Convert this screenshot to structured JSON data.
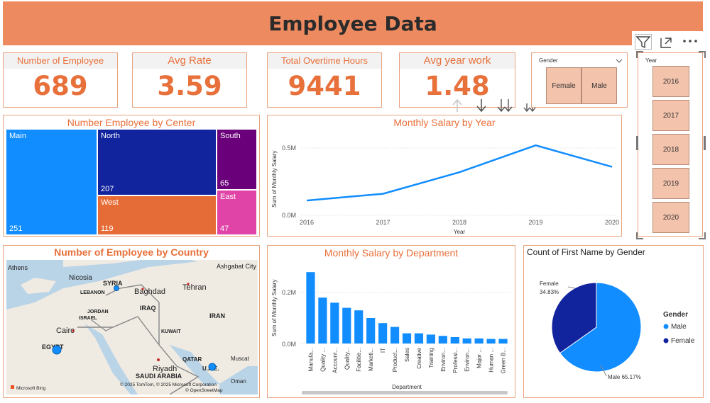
{
  "header": {
    "title": "Employee Data"
  },
  "kpis": {
    "employees": {
      "label": "Number of Employee",
      "value": "689"
    },
    "avg_rate": {
      "label": "Avg Rate",
      "value": "3.59"
    },
    "overtime": {
      "label": "Total Overtime Hours",
      "value": "9441"
    },
    "avg_year": {
      "label": "Avg year work",
      "value": "1.48"
    }
  },
  "gender_slicer": {
    "title": "Gender",
    "options": [
      "Female",
      "Male"
    ]
  },
  "year_slicer": {
    "title": "Year",
    "options": [
      "2016",
      "2017",
      "2018",
      "2019",
      "2020"
    ]
  },
  "treemap": {
    "title": "Number Employee by Center",
    "cells": [
      {
        "label": "Main",
        "value": "251",
        "color": "#118dff"
      },
      {
        "label": "North",
        "value": "207",
        "color": "#12239e"
      },
      {
        "label": "West",
        "value": "119",
        "color": "#e66c37"
      },
      {
        "label": "South",
        "value": "65",
        "color": "#6b007b"
      },
      {
        "label": "East",
        "value": "47",
        "color": "#e044a7"
      }
    ]
  },
  "map": {
    "title": "Number of Employee by Country",
    "labels": [
      "Athens",
      "Ashgabat City",
      "Nicosia",
      "SYRIA",
      "LEBANON",
      "Baghdad",
      "Tehran",
      "JORDAN",
      "IRAQ",
      "ISRAEL",
      "IRAN",
      "Cairo",
      "KUWAIT",
      "EGYPT",
      "QATAR",
      "Muscat",
      "Oman",
      "Riyadh",
      "U.A.E.",
      "SAUDI ARABIA"
    ],
    "attribution": "© 2025 TomTom, © 2025 Microsoft Corporation",
    "osm": "© OpenStreetMap",
    "bing": "Microsoft Bing"
  },
  "line_chart": {
    "title": "Monthly Salary by Year",
    "ylabel": "Sum of Monthly Salary",
    "xlabel": "Year",
    "yticks": [
      "0.5M",
      "0.0M"
    ]
  },
  "bar_chart": {
    "title": "Monthly Salary by Department",
    "ylabel": "Sum of Monthly Salary",
    "xlabel": "Department",
    "yticks": [
      "0.2M",
      "0.0M"
    ]
  },
  "pie_chart": {
    "title": "Count of First Name by Gender",
    "legend_title": "Gender",
    "female_label": "Female",
    "female_pct": "34.83%",
    "male_label": "Male 65.17%"
  },
  "visual_toolbar": {
    "icons": [
      "filter-icon",
      "focus-mode-icon",
      "more-options-icon"
    ]
  },
  "drill_toolbar": {
    "icons": [
      "drill-up-icon",
      "drill-down-icon",
      "next-level-icon",
      "expand-hierarchy-icon"
    ]
  },
  "chart_data": [
    {
      "type": "line",
      "title": "Monthly Salary by Year",
      "xlabel": "Year",
      "ylabel": "Sum of Monthly Salary",
      "x": [
        "2016",
        "2017",
        "2018",
        "2019",
        "2020"
      ],
      "series": [
        {
          "values": [
            0.11,
            0.16,
            0.32,
            0.52,
            0.36
          ]
        }
      ],
      "ylim": [
        0,
        0.6
      ],
      "unit": "M",
      "color": "#118dff"
    },
    {
      "type": "bar",
      "title": "Monthly Salary by Department",
      "xlabel": "Department",
      "ylabel": "Sum of Monthly Salary",
      "categories": [
        "Manufa...",
        "Quality ...",
        "Account...",
        "Quality...",
        "Facilitie...",
        "Marketi...",
        "IT",
        "Product...",
        "Sales",
        "Creative",
        "Training",
        "Environ...",
        "Professi...",
        "Environ...",
        "Major ...",
        "Human ...",
        "Green B..."
      ],
      "values": [
        0.28,
        0.18,
        0.16,
        0.14,
        0.13,
        0.1,
        0.08,
        0.065,
        0.04,
        0.04,
        0.035,
        0.03,
        0.025,
        0.02,
        0.02,
        0.018,
        0.018
      ],
      "ylim": [
        0,
        0.3
      ],
      "unit": "M",
      "color": "#118dff"
    },
    {
      "type": "pie",
      "title": "Count of First Name by Gender",
      "categories": [
        "Male",
        "Female"
      ],
      "values": [
        65.17,
        34.83
      ],
      "colors": [
        "#118dff",
        "#12239e"
      ],
      "legend": "right"
    },
    {
      "type": "treemap",
      "title": "Number Employee by Center",
      "categories": [
        "Main",
        "North",
        "West",
        "South",
        "East"
      ],
      "values": [
        251,
        207,
        119,
        65,
        47
      ]
    }
  ]
}
